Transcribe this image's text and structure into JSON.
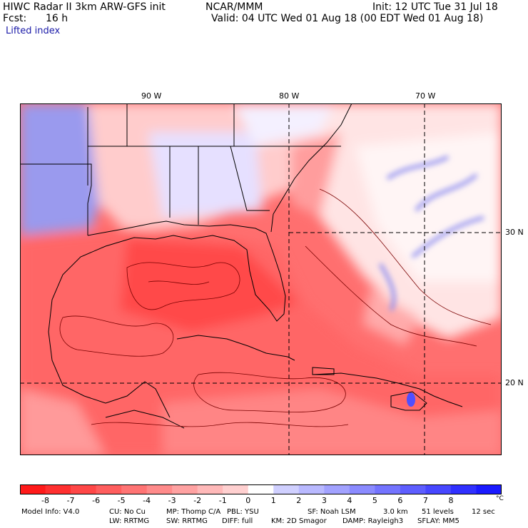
{
  "header": {
    "model_title": "HIWC Radar II 3km ARW-GFS init",
    "center": "NCAR/MMM",
    "init": "Init: 12 UTC Tue 31 Jul 18",
    "forecast_label": "Fcst:",
    "forecast_value": "16 h",
    "valid": "Valid: 04 UTC Wed 01 Aug 18 (00 EDT Wed 01 Aug 18)",
    "field": "Lifted index"
  },
  "map": {
    "longitude_labels": [
      "90 W",
      "80 W",
      "70 W"
    ],
    "latitude_labels": [
      "30 N",
      "20 N"
    ]
  },
  "colorbar": {
    "ticks": [
      "-8",
      "-7",
      "-6",
      "-5",
      "-4",
      "-3",
      "-2",
      "-1",
      "0",
      "1",
      "2",
      "3",
      "4",
      "5",
      "6",
      "7",
      "8"
    ],
    "unit": "°C",
    "colors": [
      "#ff1a1a",
      "#ff3030",
      "#ff4747",
      "#ff5e5e",
      "#ff7474",
      "#ff8b8b",
      "#ffa2a2",
      "#ffb9b9",
      "#ffd0d0",
      "#ffffff",
      "#d0d0ff",
      "#b9b9ff",
      "#a2a2ff",
      "#8b8bff",
      "#7474ff",
      "#5e5eff",
      "#4747ff",
      "#3030ff",
      "#1a1aff"
    ]
  },
  "footer": {
    "line1": [
      "Model Info: V4.0",
      "CU: No Cu",
      "MP: Thomp C/A",
      "PBL: YSU",
      "SF: Noah LSM",
      "3.0 km",
      "51 levels",
      "12 sec"
    ],
    "line2": [
      "LW: RRTMG",
      "SW: RRTMG",
      "DIFF: full",
      "KM: 2D Smagor",
      "DAMP: Rayleigh3",
      "SFLAY: MM5"
    ]
  }
}
